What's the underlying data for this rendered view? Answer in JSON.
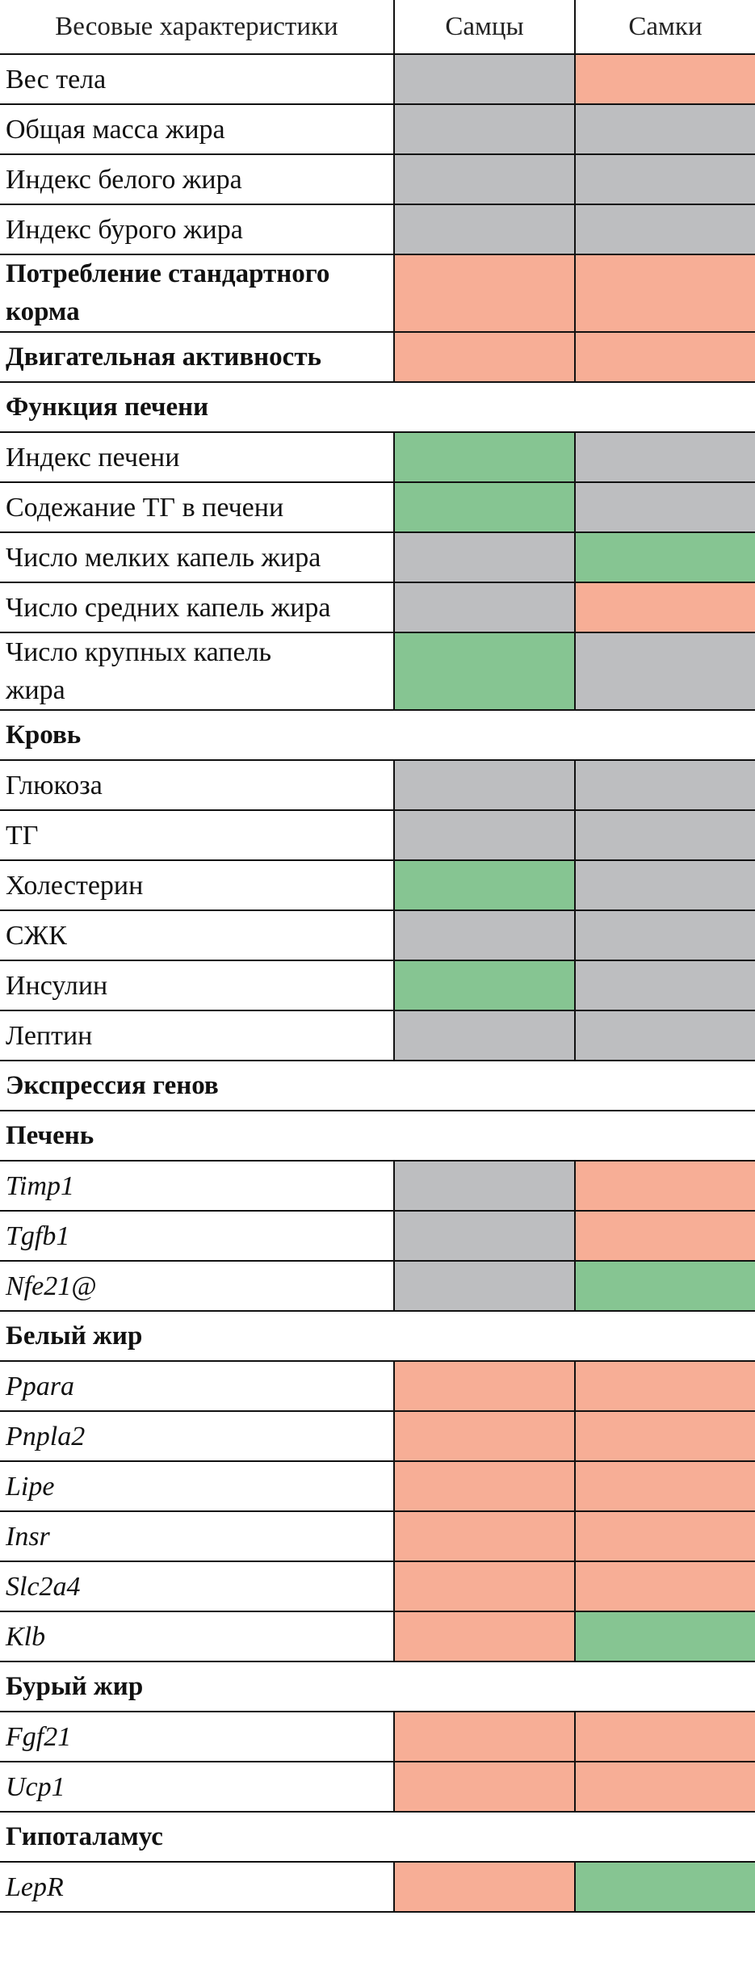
{
  "table": {
    "header": [
      "Весовые характеристики",
      "Самцы",
      "Самки"
    ],
    "colors": {
      "gray": "#bdbec0",
      "red": "#f7ae96",
      "green": "#86c592"
    },
    "rows": [
      {
        "label": "Вес тела",
        "style": "normal",
        "cells": [
          "gray",
          "red"
        ]
      },
      {
        "label": "Общая масса жира",
        "style": "normal",
        "cells": [
          "gray",
          "gray"
        ]
      },
      {
        "label": "Индекс белого жира",
        "style": "normal",
        "cells": [
          "gray",
          "gray"
        ]
      },
      {
        "label": "Индекс бурого жира",
        "style": "normal",
        "cells": [
          "gray",
          "gray"
        ]
      },
      {
        "label": "Потребление стандартного\nкорма",
        "style": "bold",
        "cells": [
          "red",
          "red"
        ]
      },
      {
        "label": "Двигательная активность",
        "style": "bold",
        "cells": [
          "red",
          "red"
        ]
      },
      {
        "label": "Функция печени",
        "style": "section"
      },
      {
        "label": "Индекс печени",
        "style": "normal",
        "cells": [
          "green",
          "gray"
        ]
      },
      {
        "label": "Содежание ТГ в печени",
        "style": "normal",
        "cells": [
          "green",
          "gray"
        ]
      },
      {
        "label": "Число мелких капель жира",
        "style": "normal",
        "cells": [
          "gray",
          "green"
        ]
      },
      {
        "label": "Число средних капель жира",
        "style": "normal",
        "cells": [
          "gray",
          "red"
        ]
      },
      {
        "label": "Число крупных капель\nжира",
        "style": "normal",
        "cells": [
          "green",
          "gray"
        ]
      },
      {
        "label": "Кровь",
        "style": "section"
      },
      {
        "label": "Глюкоза",
        "style": "normal",
        "cells": [
          "gray",
          "gray"
        ]
      },
      {
        "label": "ТГ",
        "style": "normal",
        "cells": [
          "gray",
          "gray"
        ]
      },
      {
        "label": "Холестерин",
        "style": "normal",
        "cells": [
          "green",
          "gray"
        ]
      },
      {
        "label": "СЖК",
        "style": "normal",
        "cells": [
          "gray",
          "gray"
        ]
      },
      {
        "label": "Инсулин",
        "style": "normal",
        "cells": [
          "green",
          "gray"
        ]
      },
      {
        "label": "Лептин",
        "style": "normal",
        "cells": [
          "gray",
          "gray"
        ]
      },
      {
        "label": "Экспрессия генов",
        "style": "section"
      },
      {
        "label": "Печень",
        "style": "section"
      },
      {
        "label": "Timp1",
        "style": "italic",
        "cells": [
          "gray",
          "red"
        ]
      },
      {
        "label": "Tgfb1",
        "style": "italic",
        "cells": [
          "gray",
          "red"
        ]
      },
      {
        "label": "Nfe21@",
        "style": "italic",
        "cells": [
          "gray",
          "green"
        ]
      },
      {
        "label": "Белый жир",
        "style": "section"
      },
      {
        "label": "Ppara",
        "style": "italic",
        "cells": [
          "red",
          "red"
        ]
      },
      {
        "label": "Pnpla2",
        "style": "italic",
        "cells": [
          "red",
          "red"
        ]
      },
      {
        "label": "Lipe",
        "style": "italic",
        "cells": [
          "red",
          "red"
        ]
      },
      {
        "label": "Insr",
        "style": "italic",
        "cells": [
          "red",
          "red"
        ]
      },
      {
        "label": "Slc2a4",
        "style": "italic",
        "cells": [
          "red",
          "red"
        ]
      },
      {
        "label": "Klb",
        "style": "italic",
        "cells": [
          "red",
          "green"
        ]
      },
      {
        "label": "Бурый жир",
        "style": "section"
      },
      {
        "label": "Fgf21",
        "style": "italic",
        "cells": [
          "red",
          "red"
        ]
      },
      {
        "label": "Ucp1",
        "style": "italic",
        "cells": [
          "red",
          "red"
        ]
      },
      {
        "label": "Гипоталамус",
        "style": "section"
      },
      {
        "label": "LepR",
        "style": "italic",
        "cells": [
          "red",
          "green"
        ]
      }
    ]
  }
}
